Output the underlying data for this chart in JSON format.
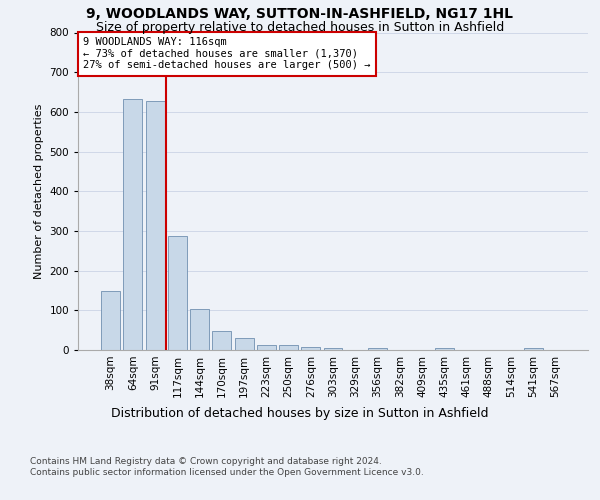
{
  "title_line1": "9, WOODLANDS WAY, SUTTON-IN-ASHFIELD, NG17 1HL",
  "title_line2": "Size of property relative to detached houses in Sutton in Ashfield",
  "xlabel": "Distribution of detached houses by size in Sutton in Ashfield",
  "ylabel": "Number of detached properties",
  "footnote": "Contains HM Land Registry data © Crown copyright and database right 2024.\nContains public sector information licensed under the Open Government Licence v3.0.",
  "bar_labels": [
    "38sqm",
    "64sqm",
    "91sqm",
    "117sqm",
    "144sqm",
    "170sqm",
    "197sqm",
    "223sqm",
    "250sqm",
    "276sqm",
    "303sqm",
    "329sqm",
    "356sqm",
    "382sqm",
    "409sqm",
    "435sqm",
    "461sqm",
    "488sqm",
    "514sqm",
    "541sqm",
    "567sqm"
  ],
  "bar_values": [
    148,
    632,
    628,
    288,
    103,
    47,
    30,
    12,
    12,
    8,
    6,
    0,
    5,
    0,
    0,
    6,
    0,
    0,
    0,
    6,
    0
  ],
  "bar_color": "#c8d8e8",
  "bar_edge_color": "#7090b0",
  "annotation_text": "9 WOODLANDS WAY: 116sqm\n← 73% of detached houses are smaller (1,370)\n27% of semi-detached houses are larger (500) →",
  "annotation_box_color": "#ffffff",
  "annotation_box_edge": "#cc0000",
  "vline_x": 2.5,
  "vline_color": "#cc0000",
  "ylim": [
    0,
    800
  ],
  "yticks": [
    0,
    100,
    200,
    300,
    400,
    500,
    600,
    700,
    800
  ],
  "grid_color": "#d0d8e8",
  "bg_color": "#eef2f8",
  "title1_fontsize": 10,
  "title2_fontsize": 9,
  "xlabel_fontsize": 9,
  "ylabel_fontsize": 8,
  "tick_fontsize": 7.5,
  "annot_fontsize": 7.5,
  "footnote_fontsize": 6.5
}
